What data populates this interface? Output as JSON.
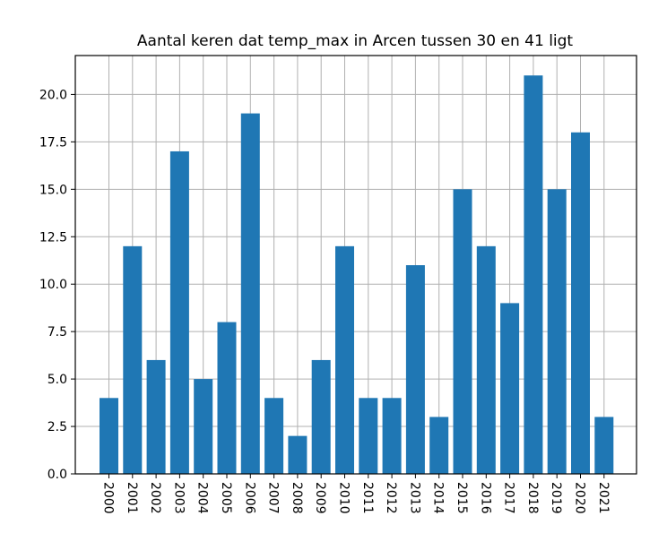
{
  "chart_data": {
    "type": "bar",
    "title": "Aantal keren dat temp_max in Arcen tussen 30 en 41 ligt",
    "xlabel": "",
    "ylabel": "",
    "categories": [
      "2000",
      "2001",
      "2002",
      "2003",
      "2004",
      "2005",
      "2006",
      "2007",
      "2008",
      "2009",
      "2010",
      "2011",
      "2012",
      "2013",
      "2014",
      "2015",
      "2016",
      "2017",
      "2018",
      "2019",
      "2020",
      "2021"
    ],
    "values": [
      4,
      12,
      6,
      17,
      5,
      8,
      19,
      4,
      2,
      6,
      12,
      4,
      4,
      11,
      3,
      15,
      12,
      9,
      21,
      15,
      18,
      3
    ],
    "ylim": [
      0,
      22.05
    ],
    "yticks": [
      0,
      2.5,
      5,
      7.5,
      10,
      12.5,
      15,
      17.5,
      20
    ],
    "ytick_labels": [
      "0.0",
      "2.5",
      "5.0",
      "7.5",
      "10.0",
      "12.5",
      "15.0",
      "17.5",
      "20.0"
    ],
    "grid": true,
    "xtick_rotation": "90 (clockwise, reading downward)",
    "bar_color": "#1f77b4",
    "grid_color": "#b0b0b0"
  }
}
